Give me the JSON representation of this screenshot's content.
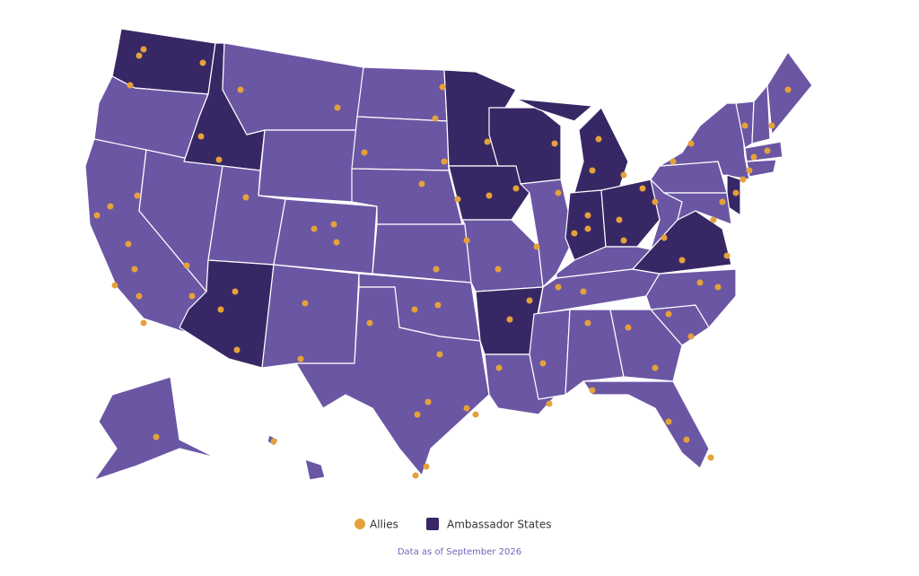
{
  "legend": {
    "items": [
      "Allies",
      "Ambassador States"
    ]
  },
  "footnote": "Data as of September 2026"
}
